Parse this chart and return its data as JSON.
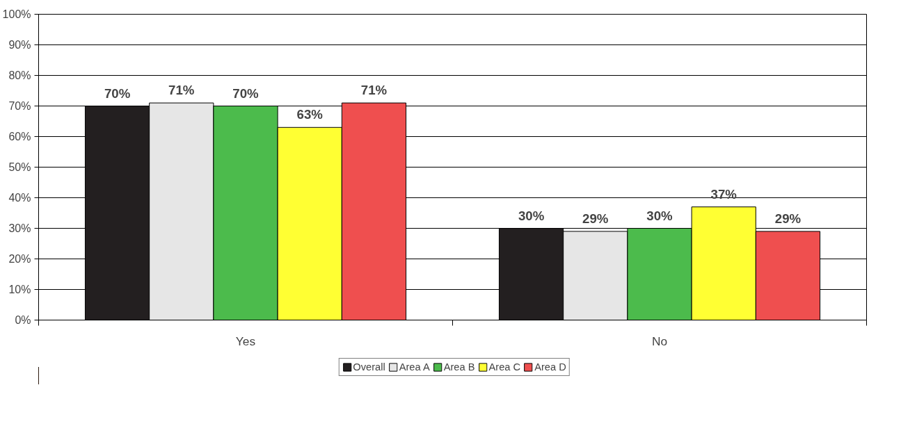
{
  "chart_data": {
    "type": "bar",
    "categories": [
      "Yes",
      "No"
    ],
    "series": [
      {
        "name": "Overall",
        "color": "#231f20",
        "values": [
          70,
          30
        ],
        "value_labels": [
          "70%",
          "30%"
        ]
      },
      {
        "name": "Area A",
        "color": "#e6e6e6",
        "values": [
          71,
          29
        ],
        "value_labels": [
          "71%",
          "29%"
        ]
      },
      {
        "name": "Area B",
        "color": "#4cbb4c",
        "values": [
          70,
          30
        ],
        "value_labels": [
          "70%",
          "30%"
        ]
      },
      {
        "name": "Area C",
        "color": "#ffff33",
        "values": [
          63,
          37
        ],
        "value_labels": [
          "63%",
          "37%"
        ]
      },
      {
        "name": "Area D",
        "color": "#ef4f4f",
        "values": [
          71,
          29
        ],
        "value_labels": [
          "71%",
          "29%"
        ]
      }
    ],
    "ylim": [
      0,
      100
    ],
    "yticks": [
      {
        "value": 0,
        "label": "0%"
      },
      {
        "value": 10,
        "label": "10%"
      },
      {
        "value": 20,
        "label": "20%"
      },
      {
        "value": 30,
        "label": "30%"
      },
      {
        "value": 40,
        "label": "40%"
      },
      {
        "value": 50,
        "label": "50%"
      },
      {
        "value": 60,
        "label": "60%"
      },
      {
        "value": 70,
        "label": "70%"
      },
      {
        "value": 80,
        "label": "80%"
      },
      {
        "value": 90,
        "label": "90%"
      },
      {
        "value": 100,
        "label": "100%"
      }
    ],
    "grid": "y",
    "legend": "bottom"
  }
}
